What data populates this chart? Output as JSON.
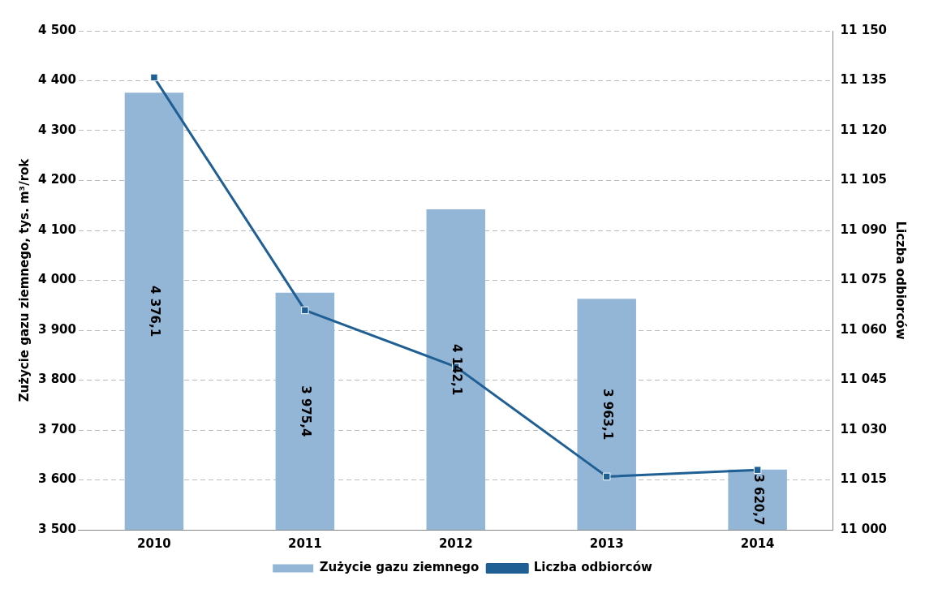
{
  "chart_data": {
    "type": "bar",
    "categories": [
      "2010",
      "2011",
      "2012",
      "2013",
      "2014"
    ],
    "ylabel": "Zużycie gazu ziemnego, tys. m³/rok",
    "y2label": "Liczba odbiorców",
    "series": [
      {
        "name": "Zużycie gazu ziemnego",
        "color": "#93b6d6",
        "values": [
          4376.1,
          3975.4,
          4142.1,
          3963.1,
          3620.7
        ],
        "value_labels": [
          "4 376,1",
          "3 975,4",
          "4 142,1",
          "3 963,1",
          "3 620,7"
        ]
      },
      {
        "name": "Liczba odbiorców",
        "type": "line",
        "axis": "y2",
        "color": "#1f5f94",
        "marker": "square",
        "values": [
          11136,
          11066,
          11049,
          11016,
          11018
        ]
      }
    ],
    "ylim": [
      3500,
      4500
    ],
    "yticks": [
      {
        "value": 3500,
        "label": "3 500"
      },
      {
        "value": 3600,
        "label": "3 600"
      },
      {
        "value": 3700,
        "label": "3 700"
      },
      {
        "value": 3800,
        "label": "3 800"
      },
      {
        "value": 3900,
        "label": "3 900"
      },
      {
        "value": 4000,
        "label": "4 000"
      },
      {
        "value": 4100,
        "label": "4 100"
      },
      {
        "value": 4200,
        "label": "4 200"
      },
      {
        "value": 4300,
        "label": "4 300"
      },
      {
        "value": 4400,
        "label": "4 400"
      },
      {
        "value": 4500,
        "label": "4 500"
      }
    ],
    "y2lim": [
      11000,
      11150
    ],
    "y2ticks": [
      {
        "value": 11000,
        "label": "11 000"
      },
      {
        "value": 11015,
        "label": "11 015"
      },
      {
        "value": 11030,
        "label": "11 030"
      },
      {
        "value": 11045,
        "label": "11 045"
      },
      {
        "value": 11060,
        "label": "11 060"
      },
      {
        "value": 11075,
        "label": "11 075"
      },
      {
        "value": 11090,
        "label": "11 090"
      },
      {
        "value": 11105,
        "label": "11 105"
      },
      {
        "value": 11120,
        "label": "11 120"
      },
      {
        "value": 11135,
        "label": "11 135"
      },
      {
        "value": 11150,
        "label": "11 150"
      }
    ],
    "grid": "y",
    "legend": "bottom"
  }
}
